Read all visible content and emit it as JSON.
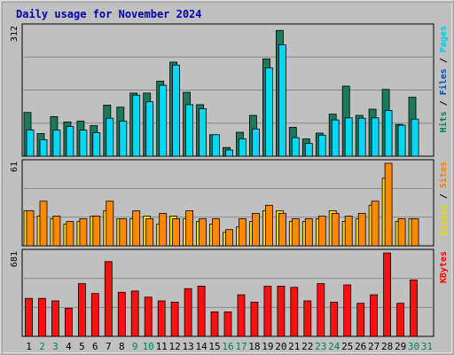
{
  "chart_data": [
    {
      "type": "bar",
      "title": "Daily usage for November 2024",
      "ymax_label": "312",
      "ylabels": [
        {
          "text": "Hits",
          "color": "#00805c"
        },
        {
          "text": "Files",
          "color": "#0050b8"
        },
        {
          "text": "Pages",
          "color": "#00c8f0"
        }
      ],
      "categories": [
        "1",
        "2",
        "3",
        "4",
        "5",
        "6",
        "7",
        "8",
        "9",
        "10",
        "11",
        "12",
        "13",
        "14",
        "15",
        "16",
        "17",
        "18",
        "19",
        "20",
        "21",
        "22",
        "23",
        "24",
        "25",
        "26",
        "27",
        "28",
        "29",
        "30",
        "31"
      ],
      "weekend_days": [
        "2",
        "3",
        "9",
        "10",
        "16",
        "17",
        "23",
        "24",
        "30",
        "31"
      ],
      "ylim": [
        0,
        312
      ],
      "series": [
        {
          "name": "Hits",
          "color": "#1a7a5a",
          "values": [
            106,
            55,
            96,
            83,
            85,
            74,
            124,
            119,
            153,
            153,
            182,
            228,
            155,
            125,
            52,
            21,
            58,
            99,
            236,
            305,
            70,
            42,
            56,
            102,
            170,
            99,
            114,
            162,
            77,
            143,
            0
          ]
        },
        {
          "name": "Files",
          "color": "#00d8f8",
          "values": [
            64,
            40,
            63,
            72,
            63,
            57,
            92,
            85,
            148,
            132,
            172,
            221,
            125,
            115,
            52,
            15,
            42,
            66,
            214,
            270,
            45,
            31,
            51,
            88,
            93,
            92,
            93,
            111,
            75,
            90,
            0
          ]
        }
      ]
    },
    {
      "type": "bar",
      "ymax_label": "61",
      "ylabels": [
        {
          "text": "Visits",
          "color": "#f0d800"
        },
        {
          "text": "Sites",
          "color": "#f08000"
        }
      ],
      "categories": [
        "1",
        "2",
        "3",
        "4",
        "5",
        "6",
        "7",
        "8",
        "9",
        "10",
        "11",
        "12",
        "13",
        "14",
        "15",
        "16",
        "17",
        "18",
        "19",
        "20",
        "21",
        "22",
        "23",
        "24",
        "25",
        "26",
        "27",
        "28",
        "29",
        "30",
        "31"
      ],
      "ylim": [
        0,
        61
      ],
      "series": [
        {
          "name": "Visits",
          "color": "#ffd800",
          "values": [
            26,
            22,
            20,
            16,
            18,
            22,
            26,
            20,
            20,
            22,
            16,
            22,
            20,
            18,
            16,
            10,
            14,
            18,
            26,
            26,
            18,
            18,
            20,
            26,
            18,
            20,
            30,
            50,
            18,
            20,
            0
          ]
        },
        {
          "name": "Sites",
          "color": "#ff8800",
          "values": [
            26,
            33,
            22,
            18,
            20,
            22,
            33,
            20,
            26,
            20,
            24,
            20,
            26,
            20,
            20,
            12,
            20,
            24,
            30,
            24,
            20,
            20,
            22,
            24,
            22,
            24,
            33,
            61,
            20,
            20,
            0
          ]
        }
      ]
    },
    {
      "type": "bar",
      "ymax_label": "681",
      "ylabels": [
        {
          "text": "KBytes",
          "color": "#ff0000"
        }
      ],
      "categories": [
        "1",
        "2",
        "3",
        "4",
        "5",
        "6",
        "7",
        "8",
        "9",
        "10",
        "11",
        "12",
        "13",
        "14",
        "15",
        "16",
        "17",
        "18",
        "19",
        "20",
        "21",
        "22",
        "23",
        "24",
        "25",
        "26",
        "27",
        "28",
        "29",
        "30",
        "31"
      ],
      "ylim": [
        0,
        681
      ],
      "series": [
        {
          "name": "KBytes",
          "color": "#ff1010",
          "values": [
            310,
            310,
            290,
            230,
            430,
            350,
            610,
            360,
            370,
            320,
            290,
            280,
            390,
            410,
            200,
            200,
            340,
            280,
            410,
            410,
            400,
            290,
            430,
            280,
            420,
            270,
            340,
            681,
            270,
            460,
            0
          ]
        }
      ]
    }
  ]
}
